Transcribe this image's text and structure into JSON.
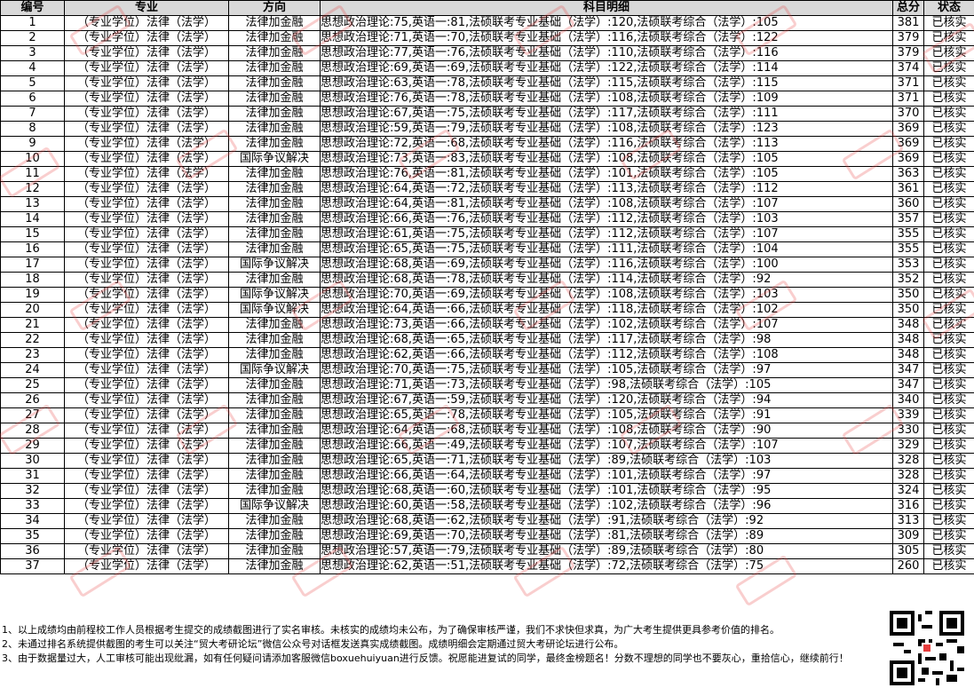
{
  "table": {
    "headers": [
      "编号",
      "专业",
      "方向",
      "科目明细",
      "总分",
      "状态"
    ],
    "rows": [
      [
        "1",
        "（专业学位）法律（法学）",
        "法律加金融",
        "思想政治理论:75,英语一:81,法硕联考专业基础（法学）:120,法硕联考综合（法学）:105",
        "381",
        "已核实"
      ],
      [
        "2",
        "（专业学位）法律（法学）",
        "法律加金融",
        "思想政治理论:71,英语一:70,法硕联考专业基础（法学）:116,法硕联考综合（法学）:122",
        "379",
        "已核实"
      ],
      [
        "3",
        "（专业学位）法律（法学）",
        "法律加金融",
        "思想政治理论:77,英语一:76,法硕联考专业基础（法学）:110,法硕联考综合（法学）:116",
        "379",
        "已核实"
      ],
      [
        "4",
        "（专业学位）法律（法学）",
        "法律加金融",
        "思想政治理论:69,英语一:69,法硕联考专业基础（法学）:122,法硕联考综合（法学）:114",
        "374",
        "已核实"
      ],
      [
        "5",
        "（专业学位）法律（法学）",
        "法律加金融",
        "思想政治理论:63,英语一:78,法硕联考专业基础（法学）:115,法硕联考综合（法学）:115",
        "371",
        "已核实"
      ],
      [
        "6",
        "（专业学位）法律（法学）",
        "法律加金融",
        "思想政治理论:76,英语一:78,法硕联考专业基础（法学）:108,法硕联考综合（法学）:109",
        "371",
        "已核实"
      ],
      [
        "7",
        "（专业学位）法律（法学）",
        "法律加金融",
        "思想政治理论:67,英语一:75,法硕联考专业基础（法学）:117,法硕联考综合（法学）:111",
        "370",
        "已核实"
      ],
      [
        "8",
        "（专业学位）法律（法学）",
        "法律加金融",
        "思想政治理论:59,英语一:79,法硕联考专业基础（法学）:108,法硕联考综合（法学）:123",
        "369",
        "已核实"
      ],
      [
        "9",
        "（专业学位）法律（法学）",
        "法律加金融",
        "思想政治理论:72,英语一:68,法硕联考专业基础（法学）:116,法硕联考综合（法学）:113",
        "369",
        "已核实"
      ],
      [
        "10",
        "（专业学位）法律（法学）",
        "国际争议解决",
        "思想政治理论:73,英语一:83,法硕联考专业基础（法学）:108,法硕联考综合（法学）:105",
        "369",
        "已核实"
      ],
      [
        "11",
        "（专业学位）法律（法学）",
        "法律加金融",
        "思想政治理论:76,英语一:81,法硕联考专业基础（法学）:101,法硕联考综合（法学）:105",
        "363",
        "已核实"
      ],
      [
        "12",
        "（专业学位）法律（法学）",
        "法律加金融",
        "思想政治理论:64,英语一:72,法硕联考专业基础（法学）:113,法硕联考综合（法学）:112",
        "361",
        "已核实"
      ],
      [
        "13",
        "（专业学位）法律（法学）",
        "法律加金融",
        "思想政治理论:64,英语一:81,法硕联考专业基础（法学）:108,法硕联考综合（法学）:107",
        "360",
        "已核实"
      ],
      [
        "14",
        "（专业学位）法律（法学）",
        "法律加金融",
        "思想政治理论:66,英语一:76,法硕联考专业基础（法学）:112,法硕联考综合（法学）:103",
        "357",
        "已核实"
      ],
      [
        "15",
        "（专业学位）法律（法学）",
        "法律加金融",
        "思想政治理论:61,英语一:75,法硕联考专业基础（法学）:112,法硕联考综合（法学）:107",
        "355",
        "已核实"
      ],
      [
        "16",
        "（专业学位）法律（法学）",
        "法律加金融",
        "思想政治理论:65,英语一:75,法硕联考专业基础（法学）:111,法硕联考综合（法学）:104",
        "355",
        "已核实"
      ],
      [
        "17",
        "（专业学位）法律（法学）",
        "国际争议解决",
        "思想政治理论:68,英语一:69,法硕联考专业基础（法学）:116,法硕联考综合（法学）:100",
        "353",
        "已核实"
      ],
      [
        "18",
        "（专业学位）法律（法学）",
        "法律加金融",
        "思想政治理论:68,英语一:78,法硕联考专业基础（法学）:114,法硕联考综合（法学）:92",
        "352",
        "已核实"
      ],
      [
        "19",
        "（专业学位）法律（法学）",
        "国际争议解决",
        "思想政治理论:70,英语一:69,法硕联考专业基础（法学）:108,法硕联考综合（法学）:103",
        "350",
        "已核实"
      ],
      [
        "20",
        "（专业学位）法律（法学）",
        "国际争议解决",
        "思想政治理论:64,英语一:66,法硕联考专业基础（法学）:118,法硕联考综合（法学）:102",
        "350",
        "已核实"
      ],
      [
        "21",
        "（专业学位）法律（法学）",
        "法律加金融",
        "思想政治理论:73,英语一:66,法硕联考专业基础（法学）:102,法硕联考综合（法学）:107",
        "348",
        "已核实"
      ],
      [
        "22",
        "（专业学位）法律（法学）",
        "法律加金融",
        "思想政治理论:68,英语一:65,法硕联考专业基础（法学）:117,法硕联考综合（法学）:98",
        "348",
        "已核实"
      ],
      [
        "23",
        "（专业学位）法律（法学）",
        "法律加金融",
        "思想政治理论:62,英语一:66,法硕联考专业基础（法学）:112,法硕联考综合（法学）:108",
        "348",
        "已核实"
      ],
      [
        "24",
        "（专业学位）法律（法学）",
        "国际争议解决",
        "思想政治理论:70,英语一:75,法硕联考专业基础（法学）:105,法硕联考综合（法学）:97",
        "347",
        "已核实"
      ],
      [
        "25",
        "（专业学位）法律（法学）",
        "法律加金融",
        "思想政治理论:71,英语一:73,法硕联考专业基础（法学）:98,法硕联考综合（法学）:105",
        "347",
        "已核实"
      ],
      [
        "26",
        "（专业学位）法律（法学）",
        "法律加金融",
        "思想政治理论:67,英语一:59,法硕联考专业基础（法学）:120,法硕联考综合（法学）:94",
        "340",
        "已核实"
      ],
      [
        "27",
        "（专业学位）法律（法学）",
        "法律加金融",
        "思想政治理论:65,英语一:78,法硕联考专业基础（法学）:105,法硕联考综合（法学）:91",
        "339",
        "已核实"
      ],
      [
        "28",
        "（专业学位）法律（法学）",
        "法律加金融",
        "思想政治理论:64,英语一:68,法硕联考专业基础（法学）:108,法硕联考综合（法学）:90",
        "330",
        "已核实"
      ],
      [
        "29",
        "（专业学位）法律（法学）",
        "法律加金融",
        "思想政治理论:66,英语一:49,法硕联考专业基础（法学）:107,法硕联考综合（法学）:107",
        "329",
        "已核实"
      ],
      [
        "30",
        "（专业学位）法律（法学）",
        "法律加金融",
        "思想政治理论:65,英语一:71,法硕联考专业基础（法学）:89,法硕联考综合（法学）:103",
        "328",
        "已核实"
      ],
      [
        "31",
        "（专业学位）法律（法学）",
        "法律加金融",
        "思想政治理论:66,英语一:64,法硕联考专业基础（法学）:101,法硕联考综合（法学）:97",
        "328",
        "已核实"
      ],
      [
        "32",
        "（专业学位）法律（法学）",
        "法律加金融",
        "思想政治理论:68,英语一:60,法硕联考专业基础（法学）:101,法硕联考综合（法学）:95",
        "324",
        "已核实"
      ],
      [
        "33",
        "（专业学位）法律（法学）",
        "国际争议解决",
        "思想政治理论:60,英语一:58,法硕联考专业基础（法学）:102,法硕联考综合（法学）:96",
        "316",
        "已核实"
      ],
      [
        "34",
        "（专业学位）法律（法学）",
        "法律加金融",
        "思想政治理论:68,英语一:62,法硕联考专业基础（法学）:91,法硕联考综合（法学）:92",
        "313",
        "已核实"
      ],
      [
        "35",
        "（专业学位）法律（法学）",
        "法律加金融",
        "思想政治理论:69,英语一:70,法硕联考专业基础（法学）:81,法硕联考综合（法学）:89",
        "309",
        "已核实"
      ],
      [
        "36",
        "（专业学位）法律（法学）",
        "法律加金融",
        "思想政治理论:57,英语一:79,法硕联考专业基础（法学）:89,法硕联考综合（法学）:80",
        "305",
        "已核实"
      ],
      [
        "37",
        "（专业学位）法律（法学）",
        "法律加金融",
        "思想政治理论:62,英语一:51,法硕联考专业基础（法学）:72,法硕联考综合（法学）:75",
        "260",
        "已核实"
      ]
    ]
  },
  "notes": [
    "1、以上成绩均由前程校工作人员根据考生提交的成绩截图进行了实名审核。未核实的成绩均未公布，为了确保审核严谨，我们不求快但求真，为广大考生提供更具参考价值的排名。",
    "2、未通过排名系统提供截图的考生可以关注“贸大考研论坛”微信公众号对话框发送真实成绩截图。成绩明细会定期通过贸大考研论坛进行公布。",
    "3、由于数据量过大，人工审核可能出现纰漏，如有任何疑问请添加客服微信boxuehuiyuan进行反馈。祝愿能进复试的同学，最终金榜题名！分数不理想的同学也不要灰心，重拾信心，继续前行！"
  ],
  "watermark": {
    "color": "#e63c3c"
  },
  "icons": {
    "qr": "qr-code-icon"
  }
}
